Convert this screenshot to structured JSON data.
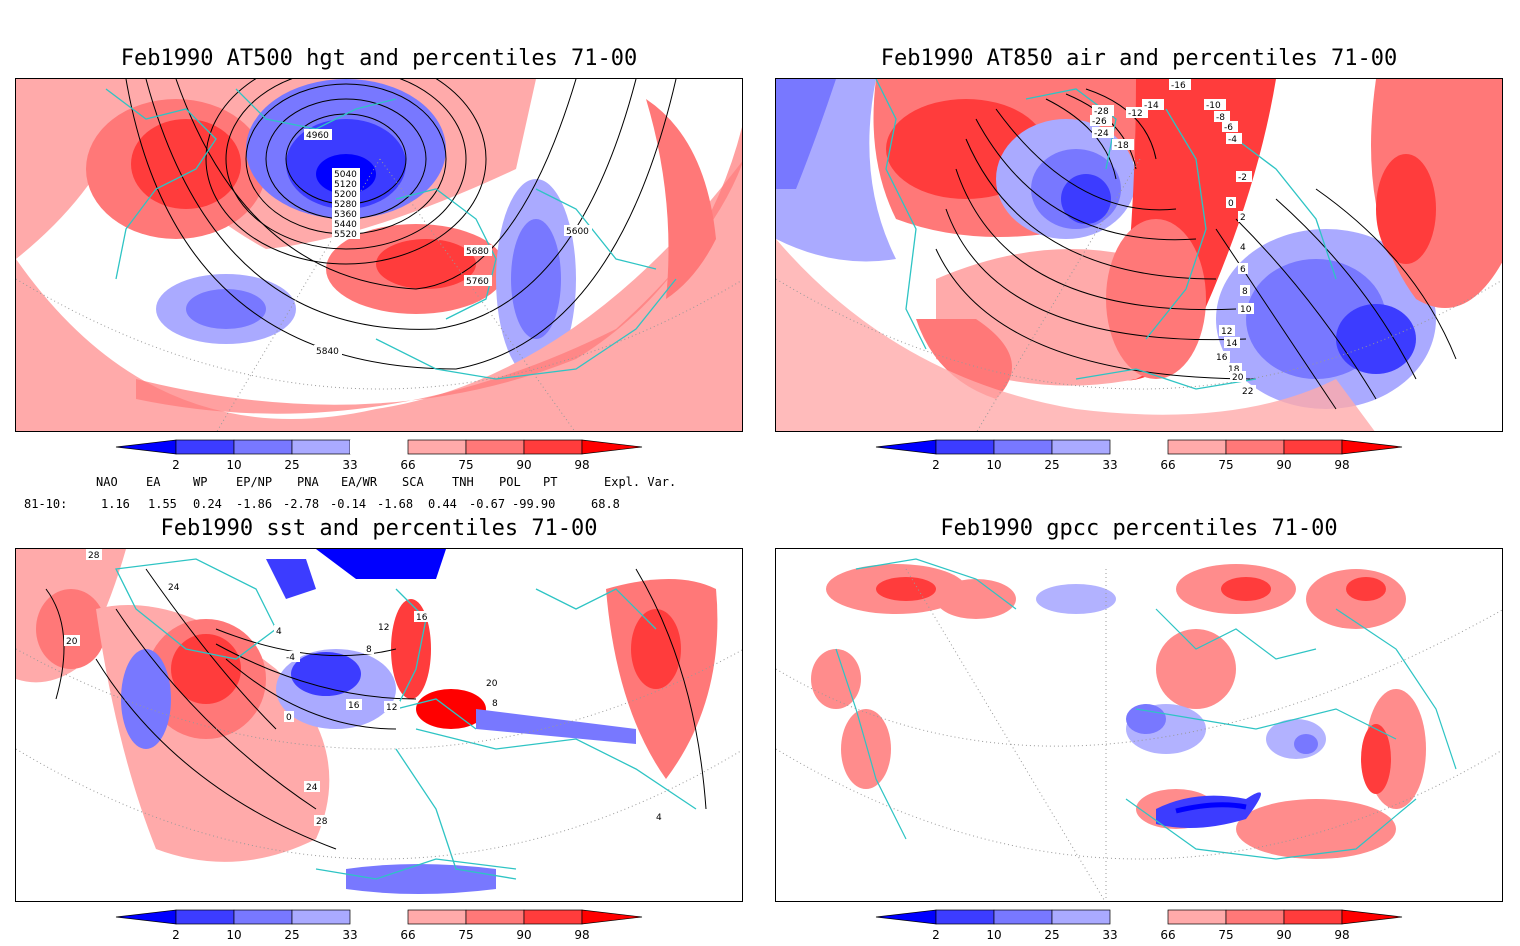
{
  "panels": [
    {
      "title": "Feb1990 AT500 hgt and percentiles 71-00",
      "contour_labels": [
        "4960",
        "5040",
        "5120",
        "5200",
        "5280",
        "5360",
        "5440",
        "5520",
        "5600",
        "5680",
        "5760",
        "5840"
      ]
    },
    {
      "title": "Feb1990 AT850 air and percentiles 71-00",
      "contour_labels": [
        "-16",
        "-14",
        "-12",
        "-10",
        "-8",
        "-6",
        "-4",
        "-2",
        "0",
        "2",
        "4",
        "6",
        "8",
        "10",
        "12",
        "14",
        "16",
        "18",
        "20",
        "22",
        "-18",
        "-28",
        "-26",
        "-24"
      ]
    },
    {
      "title": "Feb1990 sst and percentiles 71-00",
      "contour_labels": [
        "28",
        "24",
        "20",
        "16",
        "12",
        "8",
        "4",
        "0",
        "-4",
        "4",
        "8",
        "12",
        "16",
        "20",
        "24",
        "28"
      ]
    },
    {
      "title": "Feb1990 gpcc percentiles 71-00",
      "contour_labels": []
    }
  ],
  "colorbar": {
    "labels": [
      "2",
      "10",
      "25",
      "33",
      "66",
      "75",
      "90",
      "98"
    ],
    "colors": [
      "#0000ff",
      "#3c3cff",
      "#7878ff",
      "#aaaaff",
      "#ffffff",
      "#ffaaaa",
      "#ff7878",
      "#ff3c3c",
      "#ff0000"
    ]
  },
  "teleconnections": {
    "row_label": "81-10:",
    "headers": [
      "NAO",
      "EA",
      "WP",
      "EP/NP",
      "PNA",
      "EA/WR",
      "SCA",
      "TNH",
      "POL",
      "PT",
      "Expl. Var."
    ],
    "values": [
      "1.16",
      "1.55",
      "0.24",
      "-1.86",
      "-2.78",
      "-0.14",
      "-1.68",
      "0.44",
      "-0.67",
      "-99.90",
      "68.8"
    ]
  },
  "colors": {
    "coastline": "#2ec4c4",
    "contour": "#000000",
    "grid": "#999999"
  }
}
